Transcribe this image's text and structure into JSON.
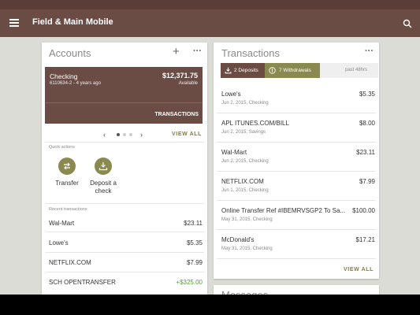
{
  "app": {
    "title": "Field & Main Mobile"
  },
  "accounts": {
    "title": "Accounts",
    "account": {
      "name": "Checking",
      "number": "6110634-2 - 4 years ago",
      "balance": "$12,371.75",
      "available_label": "Available",
      "transactions_button": "TRANSACTIONS"
    },
    "view_all": "VIEW ALL",
    "quick_actions_label": "Quick actions",
    "quick_actions": [
      {
        "label": "Transfer",
        "icon": "transfer-icon"
      },
      {
        "label": "Deposit a check",
        "icon": "deposit-icon"
      }
    ],
    "recent_label": "Recent transactions",
    "recent": [
      {
        "name": "Wal-Mart",
        "amount": "$23.11"
      },
      {
        "name": "Lowe's",
        "amount": "$5.35"
      },
      {
        "name": "NETFLIX.COM",
        "amount": "$7.99"
      },
      {
        "name": "SCH OPENTRANSFER",
        "amount": "+$325.00"
      }
    ]
  },
  "transactions": {
    "title": "Transactions",
    "deposits_chip": "2 Deposits",
    "withdrawals_chip": "7 Withdrawals",
    "period": "past 48hrs",
    "items": [
      {
        "name": "Lowe's",
        "sub": "Jun 2, 2015, Checking",
        "amount": "$5.35"
      },
      {
        "name": "APL ITUNES.COM/BILL",
        "sub": "Jun 2, 2015, Savings",
        "amount": "$8.00"
      },
      {
        "name": "Wal-Mart",
        "sub": "Jun 2, 2015, Checking",
        "amount": "$23.11"
      },
      {
        "name": "NETFLIX.COM",
        "sub": "Jun 1, 2015, Checking",
        "amount": "$7.99"
      },
      {
        "name": "Online Transfer Ref #IBEMRVSGP2 To Sa...",
        "sub": "May 31, 2015, Checking",
        "amount": "$100.00"
      },
      {
        "name": "McDonald's",
        "sub": "May 31, 2015, Checking",
        "amount": "$17.21"
      }
    ],
    "view_all": "VIEW ALL"
  },
  "messages": {
    "title": "Messages"
  },
  "colors": {
    "brand": "#6b4c45",
    "accent": "#8a8a50",
    "positive": "#5a9a3a"
  }
}
